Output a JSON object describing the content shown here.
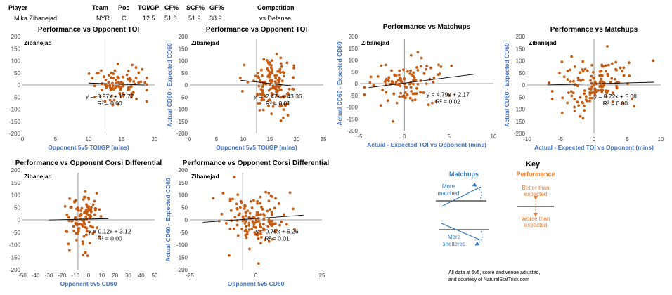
{
  "player_table": {
    "headers": [
      "Player",
      "Team",
      "Pos",
      "TOI/GP",
      "CF%",
      "SCF%",
      "GF%",
      "Competition"
    ],
    "row": [
      "Mika Zibanejad",
      "NYR",
      "C",
      "12.5",
      "51.8",
      "51.9",
      "38.9",
      "vs Defense"
    ]
  },
  "colors": {
    "point": "#c55a11",
    "axis_label": "#4472c4",
    "arrow_blue": "#2e75b6",
    "arrow_orange": "#ed7d31"
  },
  "chart_data": [
    {
      "type": "scatter",
      "title": "Performance vs Opponent TOI",
      "xlabel": "Opponent 5v5 TOI/GP (mins)",
      "ylabel": "",
      "xlim": [
        0,
        20
      ],
      "ylim": [
        -200,
        200
      ],
      "xticks": [
        "0",
        "5",
        "10",
        "15",
        "20"
      ],
      "yticks": [
        "-200",
        "-150",
        "-100",
        "-50",
        "0",
        "50",
        "100",
        "150",
        "200"
      ],
      "annotation": "Zibanejad",
      "equation": "y = -0.97x + 17.77",
      "r2": "R² = 0.00",
      "trend": {
        "slope": -0.97,
        "intercept": 17.77,
        "x0": 10,
        "x1": 18.5
      },
      "cross_x": 12.5,
      "gen": {
        "n": 90,
        "cx": 14.5,
        "sx": 2.0,
        "sy": 45,
        "seed": 11,
        "xmin": 9,
        "xmax": 18.8
      }
    },
    {
      "type": "scatter",
      "title": "Performance vs Opponent TOI",
      "xlabel": "Opponent 5v5 TOI/GP (mins)",
      "ylabel": "Actual CD60 - Expected CD60",
      "xlim": [
        0,
        25
      ],
      "ylim": [
        -200,
        200
      ],
      "xticks": [
        "0",
        "5",
        "10",
        "15",
        "20",
        "25"
      ],
      "yticks": [
        "-200",
        "-150",
        "-100",
        "-50",
        "0",
        "50",
        "100",
        "150",
        "200"
      ],
      "annotation": "Zibanejad",
      "equation": "y = -2.47x + 43.36",
      "r2": "R² = 0.01",
      "trend": {
        "slope": -2.47,
        "intercept": 43.36,
        "x0": 9.5,
        "x1": 19
      },
      "cross_x": 12.5,
      "gen": {
        "n": 140,
        "cx": 15.5,
        "sx": 2.1,
        "sy": 55,
        "seed": 23,
        "xmin": 9,
        "xmax": 19.5
      }
    },
    {
      "type": "scatter",
      "title": "Performance vs Matchups",
      "xlabel": "Actual - Expected TOI vs Opponent (mins)",
      "ylabel": "Actual CD60 - Expected CD60",
      "xlim": [
        -5,
        10
      ],
      "ylim": [
        -200,
        200
      ],
      "xticks": [
        "-5",
        "0",
        "5",
        "10"
      ],
      "yticks": [
        "-200",
        "-150",
        "-100",
        "-50",
        "0",
        "50",
        "100",
        "150",
        "200"
      ],
      "annotation": "Zibanejad",
      "equation": "y = 4.79x + 2.17",
      "r2": "R² = 0.02",
      "trend": {
        "slope": 4.79,
        "intercept": 2.17,
        "x0": -4,
        "x1": 8
      },
      "cross_x": 0,
      "gen": {
        "n": 110,
        "cx": 0.5,
        "sx": 2.2,
        "sy": 50,
        "seed": 37,
        "xmin": -4.5,
        "xmax": 9.5
      }
    },
    {
      "type": "scatter",
      "title": "Performance vs Matchups",
      "xlabel": "Actual - Expected TOI vs Opponent (mins)",
      "ylabel": "Actual CD60 - Expected CD60",
      "xlim": [
        -10,
        10
      ],
      "ylim": [
        -200,
        200
      ],
      "xticks": [
        "-10",
        "-5",
        "0",
        "5",
        "10"
      ],
      "yticks": [
        "-200",
        "-150",
        "-100",
        "-50",
        "0",
        "50",
        "100",
        "150",
        "200"
      ],
      "annotation": "Zibanejad",
      "equation": "y = 0.72x + 5.08",
      "r2": "R² = 0.00",
      "trend": {
        "slope": 0.72,
        "intercept": 5.08,
        "x0": -7,
        "x1": 9
      },
      "cross_x": 0,
      "gen": {
        "n": 140,
        "cx": 0,
        "sx": 3.0,
        "sy": 55,
        "seed": 53,
        "xmin": -8,
        "xmax": 9
      }
    },
    {
      "type": "scatter",
      "title": "Performance vs Opponent Corsi Differential",
      "xlabel": "Opponent 5v5 CD60",
      "ylabel": "",
      "xlim": [
        -50,
        50
      ],
      "ylim": [
        -200,
        200
      ],
      "xticks": [
        "-50",
        "-40",
        "-30",
        "-20",
        "-10",
        "0",
        "10",
        "20",
        "30",
        "40",
        "50"
      ],
      "yticks": [
        "-200",
        "-150",
        "-100",
        "-50",
        "0",
        "50",
        "100",
        "150",
        "200"
      ],
      "annotation": "Zibanejad",
      "equation": "y = 0.12x + 3.12",
      "r2": "R² = 0.00",
      "trend": {
        "slope": 0.12,
        "intercept": 3.12,
        "x0": -30,
        "x1": 15
      },
      "cross_x": -8,
      "gen": {
        "n": 110,
        "cx": -5,
        "sx": 6.5,
        "sy": 48,
        "seed": 67,
        "xmin": -30,
        "xmax": 14
      }
    },
    {
      "type": "scatter",
      "title": "Performance vs Opponent Corsi Differential",
      "xlabel": "Opponent 5v5 CD60",
      "ylabel": "Actual CD60 - Expected CD60",
      "xlim": [
        -25,
        25
      ],
      "ylim": [
        -200,
        200
      ],
      "xticks": [
        "-25",
        "0",
        "25"
      ],
      "yticks": [
        "-200",
        "-150",
        "-100",
        "-50",
        "0",
        "50",
        "100",
        "150",
        "200"
      ],
      "annotation": "Zibanejad",
      "equation": "y = 0.75x + 5.26",
      "r2": "R² = 0.01",
      "trend": {
        "slope": 0.75,
        "intercept": 5.26,
        "x0": -20,
        "x1": 18
      },
      "cross_x": -5,
      "gen": {
        "n": 140,
        "cx": -1,
        "sx": 6.0,
        "sy": 55,
        "seed": 79,
        "xmin": -22,
        "xmax": 18
      }
    }
  ],
  "key": {
    "title": "Key",
    "matchups_label": "Matchups",
    "performance_label": "Performance",
    "more_matched": "More matched",
    "more_sheltered": "More sheltered",
    "better": "Better than expected",
    "worse": "Worse than expected"
  },
  "footer": {
    "line1": "All data at 5v5, score and venue adjusted,",
    "line2": "and courtesy of NaturalStatTrick.com"
  }
}
